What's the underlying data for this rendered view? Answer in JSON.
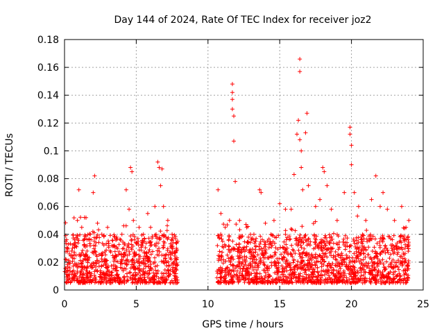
{
  "chart_data": {
    "type": "scatter",
    "title": "Day 144 of 2024, Rate Of TEC Index for receiver joz2",
    "xlabel": "GPS time / hours",
    "ylabel": "ROTI / TECUs",
    "xlim": [
      0,
      25
    ],
    "ylim": [
      0,
      0.18
    ],
    "x_ticks": [
      "0",
      "5",
      "10",
      "15",
      "20",
      "25"
    ],
    "y_ticks": [
      "0",
      "0.02",
      "0.04",
      "0.06",
      "0.08",
      "0.1",
      "0.12",
      "0.14",
      "0.16",
      "0.18"
    ],
    "grid": true,
    "marker": "plus",
    "color": "#ff0000",
    "data_gap_hours": [
      7.9,
      10.6
    ],
    "series": [
      {
        "name": "ROTI",
        "points": [
          [
            0.1,
            0.035
          ],
          [
            0.2,
            0.03
          ],
          [
            0.3,
            0.02
          ],
          [
            0.5,
            0.028
          ],
          [
            0.7,
            0.036
          ],
          [
            0.9,
            0.05
          ],
          [
            1.0,
            0.072
          ],
          [
            1.2,
            0.045
          ],
          [
            1.5,
            0.052
          ],
          [
            1.8,
            0.04
          ],
          [
            2.0,
            0.07
          ],
          [
            2.1,
            0.082
          ],
          [
            2.3,
            0.048
          ],
          [
            2.6,
            0.04
          ],
          [
            3.0,
            0.045
          ],
          [
            3.5,
            0.038
          ],
          [
            4.0,
            0.04
          ],
          [
            4.3,
            0.072
          ],
          [
            4.5,
            0.058
          ],
          [
            4.6,
            0.088
          ],
          [
            4.7,
            0.085
          ],
          [
            4.8,
            0.05
          ],
          [
            5.2,
            0.045
          ],
          [
            5.5,
            0.04
          ],
          [
            5.8,
            0.055
          ],
          [
            6.0,
            0.045
          ],
          [
            6.3,
            0.06
          ],
          [
            6.5,
            0.092
          ],
          [
            6.6,
            0.088
          ],
          [
            6.7,
            0.075
          ],
          [
            6.8,
            0.087
          ],
          [
            6.9,
            0.06
          ],
          [
            7.2,
            0.05
          ],
          [
            7.5,
            0.04
          ],
          [
            7.8,
            0.03
          ],
          [
            10.7,
            0.072
          ],
          [
            10.9,
            0.055
          ],
          [
            11.2,
            0.045
          ],
          [
            11.5,
            0.05
          ],
          [
            11.7,
            0.148
          ],
          [
            11.7,
            0.142
          ],
          [
            11.7,
            0.137
          ],
          [
            11.7,
            0.13
          ],
          [
            11.8,
            0.125
          ],
          [
            11.8,
            0.107
          ],
          [
            11.9,
            0.078
          ],
          [
            12.2,
            0.05
          ],
          [
            12.7,
            0.045
          ],
          [
            13.2,
            0.04
          ],
          [
            13.6,
            0.072
          ],
          [
            13.7,
            0.07
          ],
          [
            14.0,
            0.048
          ],
          [
            14.6,
            0.05
          ],
          [
            15.0,
            0.062
          ],
          [
            15.4,
            0.058
          ],
          [
            15.8,
            0.058
          ],
          [
            16.0,
            0.083
          ],
          [
            16.2,
            0.112
          ],
          [
            16.3,
            0.122
          ],
          [
            16.4,
            0.166
          ],
          [
            16.4,
            0.157
          ],
          [
            16.4,
            0.108
          ],
          [
            16.5,
            0.1
          ],
          [
            16.5,
            0.088
          ],
          [
            16.6,
            0.072
          ],
          [
            16.8,
            0.113
          ],
          [
            16.9,
            0.127
          ],
          [
            17.0,
            0.075
          ],
          [
            17.5,
            0.06
          ],
          [
            17.8,
            0.065
          ],
          [
            18.0,
            0.088
          ],
          [
            18.1,
            0.085
          ],
          [
            18.3,
            0.075
          ],
          [
            18.6,
            0.058
          ],
          [
            19.0,
            0.05
          ],
          [
            19.5,
            0.07
          ],
          [
            19.9,
            0.117
          ],
          [
            19.9,
            0.112
          ],
          [
            20.0,
            0.104
          ],
          [
            20.0,
            0.09
          ],
          [
            20.2,
            0.07
          ],
          [
            20.5,
            0.06
          ],
          [
            21.0,
            0.05
          ],
          [
            21.4,
            0.065
          ],
          [
            21.7,
            0.082
          ],
          [
            22.0,
            0.06
          ],
          [
            22.2,
            0.07
          ],
          [
            22.5,
            0.058
          ],
          [
            23.0,
            0.05
          ],
          [
            23.5,
            0.06
          ],
          [
            23.8,
            0.045
          ],
          [
            24.0,
            0.05
          ]
        ]
      }
    ]
  }
}
